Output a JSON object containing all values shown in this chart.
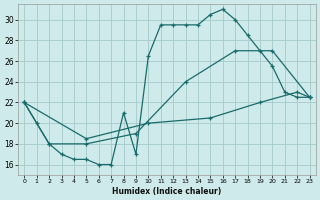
{
  "xlabel": "Humidex (Indice chaleur)",
  "background_color": "#ceeaea",
  "grid_color": "#aacece",
  "line_color": "#1a6b6b",
  "xlim": [
    -0.5,
    23.5
  ],
  "ylim": [
    15,
    31.5
  ],
  "xticks": [
    0,
    1,
    2,
    3,
    4,
    5,
    6,
    7,
    8,
    9,
    10,
    11,
    12,
    13,
    14,
    15,
    16,
    17,
    18,
    19,
    20,
    21,
    22,
    23
  ],
  "yticks": [
    16,
    18,
    20,
    22,
    24,
    26,
    28,
    30
  ],
  "series1_x": [
    0,
    1,
    2,
    3,
    4,
    5,
    6,
    7,
    8,
    9,
    10,
    11,
    12,
    13,
    14,
    15,
    16,
    17,
    18,
    19,
    20,
    21,
    22,
    23
  ],
  "series1_y": [
    22,
    20,
    18,
    17,
    16.5,
    16.5,
    16,
    16,
    21,
    17,
    26.5,
    29.5,
    29.5,
    29.5,
    29.5,
    30.5,
    31,
    30,
    28.5,
    27,
    25.5,
    23,
    22.5,
    22.5
  ],
  "series2_x": [
    0,
    2,
    5,
    9,
    13,
    17,
    20,
    23
  ],
  "series2_y": [
    22,
    18,
    18,
    19,
    24,
    27,
    27,
    22.5
  ],
  "series3_x": [
    0,
    5,
    10,
    15,
    19,
    22,
    23
  ],
  "series3_y": [
    22,
    18.5,
    20,
    20.5,
    22,
    23,
    22.5
  ]
}
